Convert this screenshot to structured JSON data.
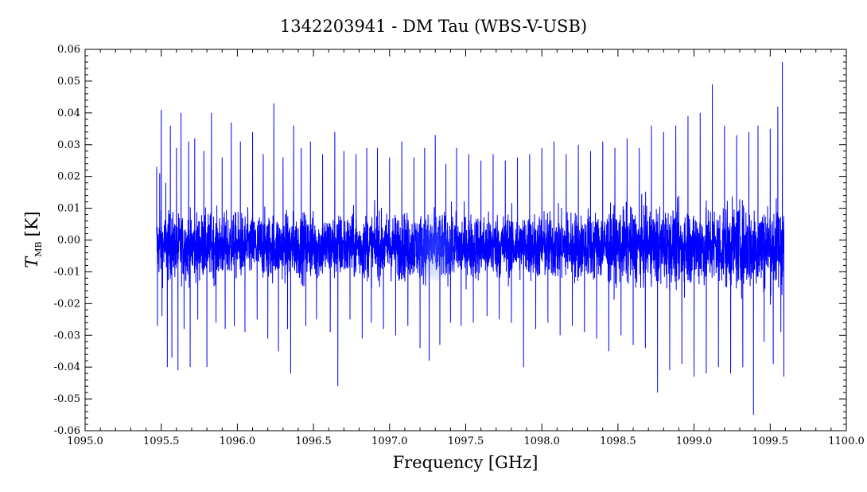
{
  "chart_data": {
    "type": "line",
    "title": "1342203941 - DM Tau (WBS-V-USB)",
    "xlabel": "Frequency [GHz]",
    "ylabel_main": "T",
    "ylabel_sub": "MB",
    "ylabel_unit": "[K]",
    "xlim": [
      1095.0,
      1100.0
    ],
    "ylim": [
      -0.06,
      0.06
    ],
    "x_ticks": [
      "1095.0",
      "1095.5",
      "1096.0",
      "1096.5",
      "1097.0",
      "1097.5",
      "1098.0",
      "1098.5",
      "1099.0",
      "1099.5",
      "1100.0"
    ],
    "y_ticks": [
      "0.06",
      "0.05",
      "0.04",
      "0.03",
      "0.02",
      "0.01",
      "0.00",
      "-0.01",
      "-0.02",
      "-0.03",
      "-0.04",
      "-0.05",
      "-0.06"
    ],
    "grid": false,
    "series": [
      {
        "color": "#0000ff",
        "x_start": 1095.47,
        "x_end": 1099.59,
        "points": [
          [
            1095.47,
            0.023
          ],
          [
            1095.475,
            -0.027
          ],
          [
            1095.49,
            0.021
          ],
          [
            1095.5,
            0.041
          ],
          [
            1095.505,
            -0.024
          ],
          [
            1095.53,
            0.018
          ],
          [
            1095.54,
            -0.04
          ],
          [
            1095.56,
            0.036
          ],
          [
            1095.57,
            -0.037
          ],
          [
            1095.6,
            0.029
          ],
          [
            1095.61,
            -0.041
          ],
          [
            1095.63,
            0.04
          ],
          [
            1095.65,
            -0.028
          ],
          [
            1095.68,
            0.031
          ],
          [
            1095.69,
            -0.04
          ],
          [
            1095.72,
            0.032
          ],
          [
            1095.74,
            -0.025
          ],
          [
            1095.78,
            0.028
          ],
          [
            1095.8,
            -0.04
          ],
          [
            1095.83,
            0.04
          ],
          [
            1095.86,
            -0.026
          ],
          [
            1095.9,
            0.026
          ],
          [
            1095.92,
            -0.028
          ],
          [
            1095.96,
            0.037
          ],
          [
            1095.98,
            -0.027
          ],
          [
            1096.02,
            0.031
          ],
          [
            1096.05,
            -0.029
          ],
          [
            1096.1,
            0.034
          ],
          [
            1096.13,
            -0.025
          ],
          [
            1096.17,
            0.027
          ],
          [
            1096.2,
            -0.031
          ],
          [
            1096.24,
            0.043
          ],
          [
            1096.27,
            -0.035
          ],
          [
            1096.3,
            0.026
          ],
          [
            1096.33,
            -0.028
          ],
          [
            1096.37,
            0.036
          ],
          [
            1096.35,
            -0.042
          ],
          [
            1096.42,
            0.029
          ],
          [
            1096.45,
            -0.027
          ],
          [
            1096.48,
            0.031
          ],
          [
            1096.52,
            -0.025
          ],
          [
            1096.56,
            0.027
          ],
          [
            1096.61,
            -0.029
          ],
          [
            1096.64,
            0.034
          ],
          [
            1096.66,
            -0.046
          ],
          [
            1096.7,
            0.028
          ],
          [
            1096.74,
            -0.025
          ],
          [
            1096.78,
            0.027
          ],
          [
            1096.82,
            -0.031
          ],
          [
            1096.85,
            0.029
          ],
          [
            1096.88,
            -0.026
          ],
          [
            1096.92,
            0.029
          ],
          [
            1096.96,
            -0.028
          ],
          [
            1097.0,
            0.026
          ],
          [
            1097.04,
            -0.03
          ],
          [
            1097.08,
            0.031
          ],
          [
            1097.12,
            -0.027
          ],
          [
            1097.16,
            0.026
          ],
          [
            1097.2,
            -0.034
          ],
          [
            1097.23,
            0.029
          ],
          [
            1097.26,
            -0.038
          ],
          [
            1097.3,
            0.033
          ],
          [
            1097.33,
            -0.033
          ],
          [
            1097.37,
            0.024
          ],
          [
            1097.4,
            -0.026
          ],
          [
            1097.44,
            0.029
          ],
          [
            1097.47,
            -0.027
          ],
          [
            1097.52,
            0.027
          ],
          [
            1097.55,
            -0.026
          ],
          [
            1097.6,
            0.025
          ],
          [
            1097.64,
            -0.024
          ],
          [
            1097.68,
            0.027
          ],
          [
            1097.72,
            -0.025
          ],
          [
            1097.76,
            0.025
          ],
          [
            1097.8,
            -0.026
          ],
          [
            1097.84,
            0.026
          ],
          [
            1097.88,
            -0.04
          ],
          [
            1097.92,
            0.027
          ],
          [
            1097.96,
            -0.028
          ],
          [
            1098.0,
            0.029
          ],
          [
            1098.04,
            -0.026
          ],
          [
            1098.08,
            0.031
          ],
          [
            1098.12,
            -0.03
          ],
          [
            1098.16,
            0.027
          ],
          [
            1098.2,
            -0.027
          ],
          [
            1098.24,
            0.03
          ],
          [
            1098.28,
            -0.029
          ],
          [
            1098.32,
            0.028
          ],
          [
            1098.36,
            -0.031
          ],
          [
            1098.4,
            0.031
          ],
          [
            1098.44,
            -0.035
          ],
          [
            1098.48,
            0.029
          ],
          [
            1098.52,
            -0.03
          ],
          [
            1098.56,
            0.032
          ],
          [
            1098.6,
            -0.033
          ],
          [
            1098.64,
            0.029
          ],
          [
            1098.68,
            -0.034
          ],
          [
            1098.72,
            0.036
          ],
          [
            1098.76,
            -0.048
          ],
          [
            1098.8,
            0.034
          ],
          [
            1098.84,
            -0.041
          ],
          [
            1098.88,
            0.036
          ],
          [
            1098.92,
            -0.039
          ],
          [
            1098.96,
            0.039
          ],
          [
            1099.0,
            -0.043
          ],
          [
            1099.04,
            0.04
          ],
          [
            1099.08,
            -0.042
          ],
          [
            1099.12,
            0.049
          ],
          [
            1099.16,
            -0.04
          ],
          [
            1099.2,
            0.036
          ],
          [
            1099.24,
            -0.042
          ],
          [
            1099.28,
            0.033
          ],
          [
            1099.32,
            -0.04
          ],
          [
            1099.36,
            0.034
          ],
          [
            1099.39,
            -0.055
          ],
          [
            1099.42,
            0.036
          ],
          [
            1099.46,
            -0.032
          ],
          [
            1099.5,
            0.035
          ],
          [
            1099.52,
            -0.039
          ],
          [
            1099.55,
            0.042
          ],
          [
            1099.57,
            -0.029
          ],
          [
            1099.58,
            0.056
          ],
          [
            1099.59,
            -0.043
          ]
        ]
      }
    ]
  }
}
